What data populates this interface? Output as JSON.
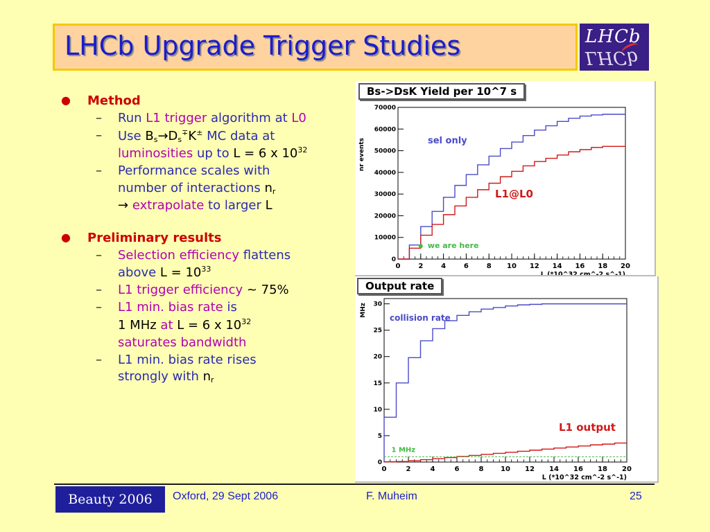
{
  "slide": {
    "title": "LHCb Upgrade Trigger Studies",
    "logo": "LHCb"
  },
  "bullets": {
    "method": "Method",
    "m1": {
      "a": "Run ",
      "b": "L1 trigger",
      "c": " algorithm at ",
      "d": "L0"
    },
    "m2": {
      "a": "Use ",
      "b": "B",
      "b_sub": "s",
      "c": "→",
      "d": "D",
      "d_sub": "s",
      "d_sup": "∓",
      "e": "K",
      "e_sup": "±",
      "f": " MC data at",
      "g": "luminosities",
      "h": " up to ",
      "i": "L = 6 x 10",
      "i_sup": "32"
    },
    "m3": {
      "a": "Performance scales with",
      "b": "number of interactions ",
      "c": "n",
      "c_sub": "r",
      "d": "→ ",
      "e": "extrapolate",
      "f": " to larger ",
      "g": "L"
    },
    "prelim": "Preliminary results",
    "p1": {
      "a": "Selection efficiency",
      "b": " flattens",
      "c": "above ",
      "d": "L = 10",
      "d_sup": "33"
    },
    "p2": {
      "a": "L1 trigger efficiency",
      "b": " ~ 75%"
    },
    "p3": {
      "a": "L1 min. bias rate",
      "b": " is",
      "c": "1 MHz",
      "d": " at ",
      "e": "L = 6 x 10",
      "e_sup": "32",
      "f": "saturates bandwidth"
    },
    "p4": {
      "a": "L1  min. bias rate rises",
      "b": "strongly with ",
      "c": "n",
      "c_sub": "r"
    }
  },
  "footer": {
    "conference": "Beauty 2006",
    "place_date": "Oxford, 29 Sept 2006",
    "author": "F. Muheim",
    "page": "25"
  },
  "chart_data": [
    {
      "type": "line",
      "title": "Bs->DsK Yield per 10^7 s",
      "xlabel": "L (*10^32 cm^-2 s^-1)",
      "ylabel": "nr events",
      "xlim": [
        0,
        20
      ],
      "ylim": [
        0,
        70000
      ],
      "xticks": [
        "0",
        "2",
        "4",
        "6",
        "8",
        "10",
        "12",
        "14",
        "16",
        "18",
        "20"
      ],
      "yticks": [
        "0",
        "10000",
        "20000",
        "30000",
        "40000",
        "50000",
        "60000",
        "70000"
      ],
      "step": 1,
      "series": [
        {
          "name": "sel only",
          "color": "#4a4ac8",
          "values": [
            0,
            6500,
            15000,
            22000,
            28500,
            34000,
            39000,
            43500,
            47500,
            51000,
            54000,
            57000,
            59500,
            61500,
            63500,
            65000,
            66000,
            66500,
            66800,
            66800
          ]
        },
        {
          "name": "L1@L0",
          "color": "#d01818",
          "values": [
            0,
            5000,
            11000,
            16000,
            20500,
            24500,
            28500,
            32000,
            35000,
            38000,
            40500,
            43000,
            45000,
            46500,
            48000,
            49500,
            50500,
            51500,
            52000,
            52000
          ]
        }
      ],
      "annotation": {
        "text": "we are here",
        "x": 2,
        "y": 6000,
        "color": "#44bb44"
      }
    },
    {
      "type": "line",
      "title": "Output rate",
      "xlabel": "L (*10^32 cm^-2 s^-1)",
      "ylabel": "MHz",
      "xlim": [
        0,
        20
      ],
      "ylim": [
        0,
        31
      ],
      "xticks": [
        "0",
        "2",
        "4",
        "6",
        "8",
        "10",
        "12",
        "14",
        "16",
        "18",
        "20"
      ],
      "yticks": [
        "0",
        "5",
        "10",
        "15",
        "20",
        "25",
        "30"
      ],
      "step": 1,
      "series": [
        {
          "name": "collision rate",
          "color": "#4a4ac8",
          "values": [
            8.5,
            15,
            19.8,
            23,
            25.3,
            26.8,
            27.8,
            28.5,
            29,
            29.3,
            29.6,
            29.8,
            29.9,
            30,
            30,
            30,
            30,
            30,
            30,
            30
          ]
        },
        {
          "name": "L1 output",
          "color": "#d01818",
          "values": [
            0.05,
            0.1,
            0.25,
            0.45,
            0.65,
            0.85,
            1.05,
            1.25,
            1.45,
            1.65,
            1.85,
            2.05,
            2.25,
            2.45,
            2.65,
            2.85,
            3.05,
            3.25,
            3.4,
            3.6
          ]
        }
      ],
      "reference": {
        "text": "1 MHz",
        "y": 1,
        "color": "#44bb44"
      }
    }
  ]
}
